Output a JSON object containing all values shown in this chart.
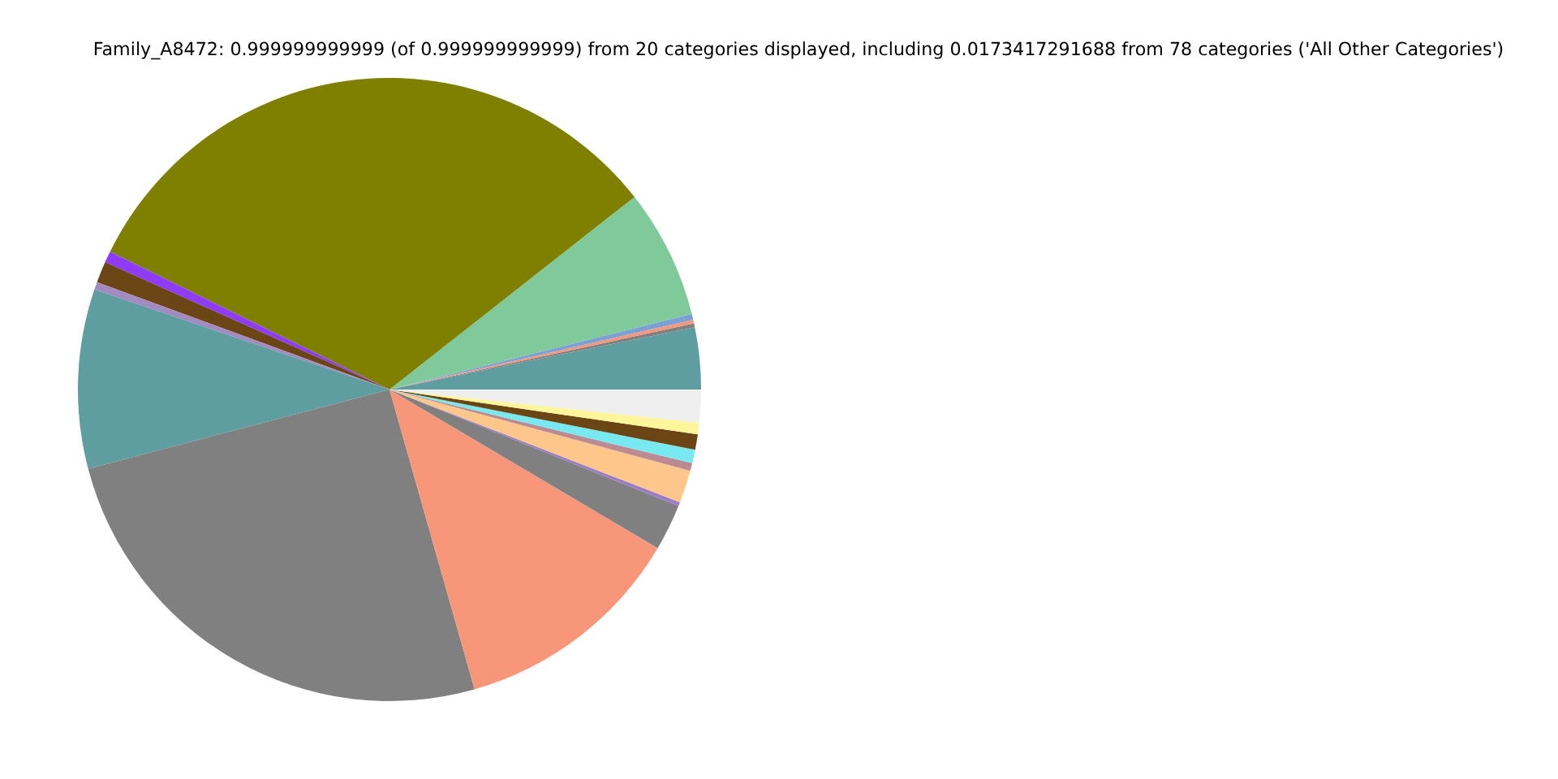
{
  "chart_data": {
    "type": "pie",
    "title": "Family_A8472: 0.999999999999 (of 0.999999999999) from 20 categories displayed, including 0.0173417291688 from 78 categories ('All Other Categories')",
    "categories": [
      null,
      null,
      null,
      null,
      null,
      null,
      null,
      null,
      null,
      null,
      null,
      null,
      null,
      null,
      null,
      null,
      null,
      null,
      null,
      null
    ],
    "values": [
      3.2,
      0.2,
      0.2,
      0.3,
      6.7,
      32.1,
      0.6,
      1.1,
      0.4,
      9.3,
      25.3,
      12.1,
      2.4,
      0.2,
      1.7,
      0.4,
      0.7,
      0.8,
      0.6,
      1.7
    ],
    "colors": [
      "#5f9ea0",
      "#808080",
      "#f8967a",
      "#7ba0d5",
      "#80c99b",
      "#808000",
      "#8e3cf9",
      "#6b4513",
      "#a38ac0",
      "#5f9ea0",
      "#808080",
      "#f8967a",
      "#808080",
      "#9a7cc8",
      "#fdc78b",
      "#bc8a90",
      "#76e9f1",
      "#6b4513",
      "#fff59a",
      "#efefef"
    ]
  }
}
